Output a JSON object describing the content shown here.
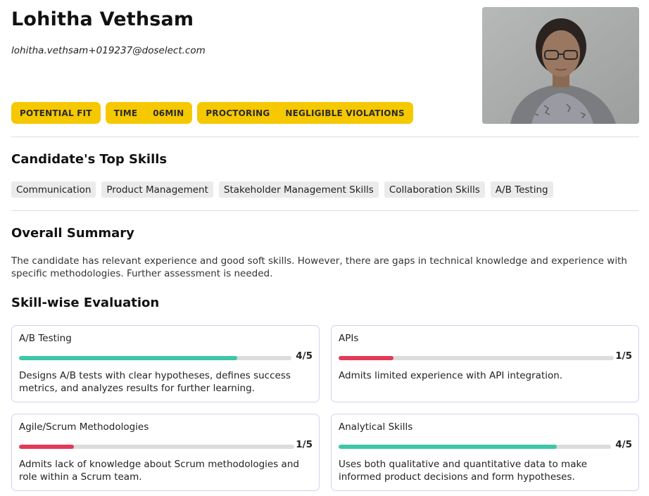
{
  "candidate": {
    "name": "Lohitha Vethsam",
    "email": "lohitha.vethsam+019237@doselect.com"
  },
  "badges": [
    {
      "label": "POTENTIAL FIT",
      "value": ""
    },
    {
      "label": "TIME",
      "value": "06MIN"
    },
    {
      "label": "PROCTORING",
      "value": "NEGLIGIBLE VIOLATIONS"
    }
  ],
  "colors": {
    "badge_bg": "#f5c800",
    "high_score": "#3ec6a8",
    "low_score": "#e23a57",
    "track": "#dcdcdc",
    "card_border": "#d3d0ef"
  },
  "top_skills": {
    "title": "Candidate's Top Skills",
    "items": [
      "Communication",
      "Product Management",
      "Stakeholder Management Skills",
      "Collaboration Skills",
      "A/B Testing"
    ]
  },
  "summary": {
    "title": "Overall Summary",
    "text": "The candidate has relevant experience and good soft skills. However, there are gaps in technical knowledge and experience with specific methodologies. Further assessment is needed."
  },
  "evaluation": {
    "title": "Skill-wise Evaluation",
    "cards": [
      {
        "skill": "A/B Testing",
        "score": "4/5",
        "score_value": 4,
        "max": 5,
        "level": "high",
        "description": "Designs A/B tests with clear hypotheses, defines success metrics, and analyzes results for further learning."
      },
      {
        "skill": "APIs",
        "score": "1/5",
        "score_value": 1,
        "max": 5,
        "level": "low",
        "description": "Admits limited experience with API integration."
      },
      {
        "skill": "Agile/Scrum Methodologies",
        "score": "1/5",
        "score_value": 1,
        "max": 5,
        "level": "low",
        "description": "Admits lack of knowledge about Scrum methodologies and role within a Scrum team."
      },
      {
        "skill": "Analytical Skills",
        "score": "4/5",
        "score_value": 4,
        "max": 5,
        "level": "high",
        "description": "Uses both qualitative and quantitative data to make informed product decisions and form hypotheses."
      }
    ]
  }
}
